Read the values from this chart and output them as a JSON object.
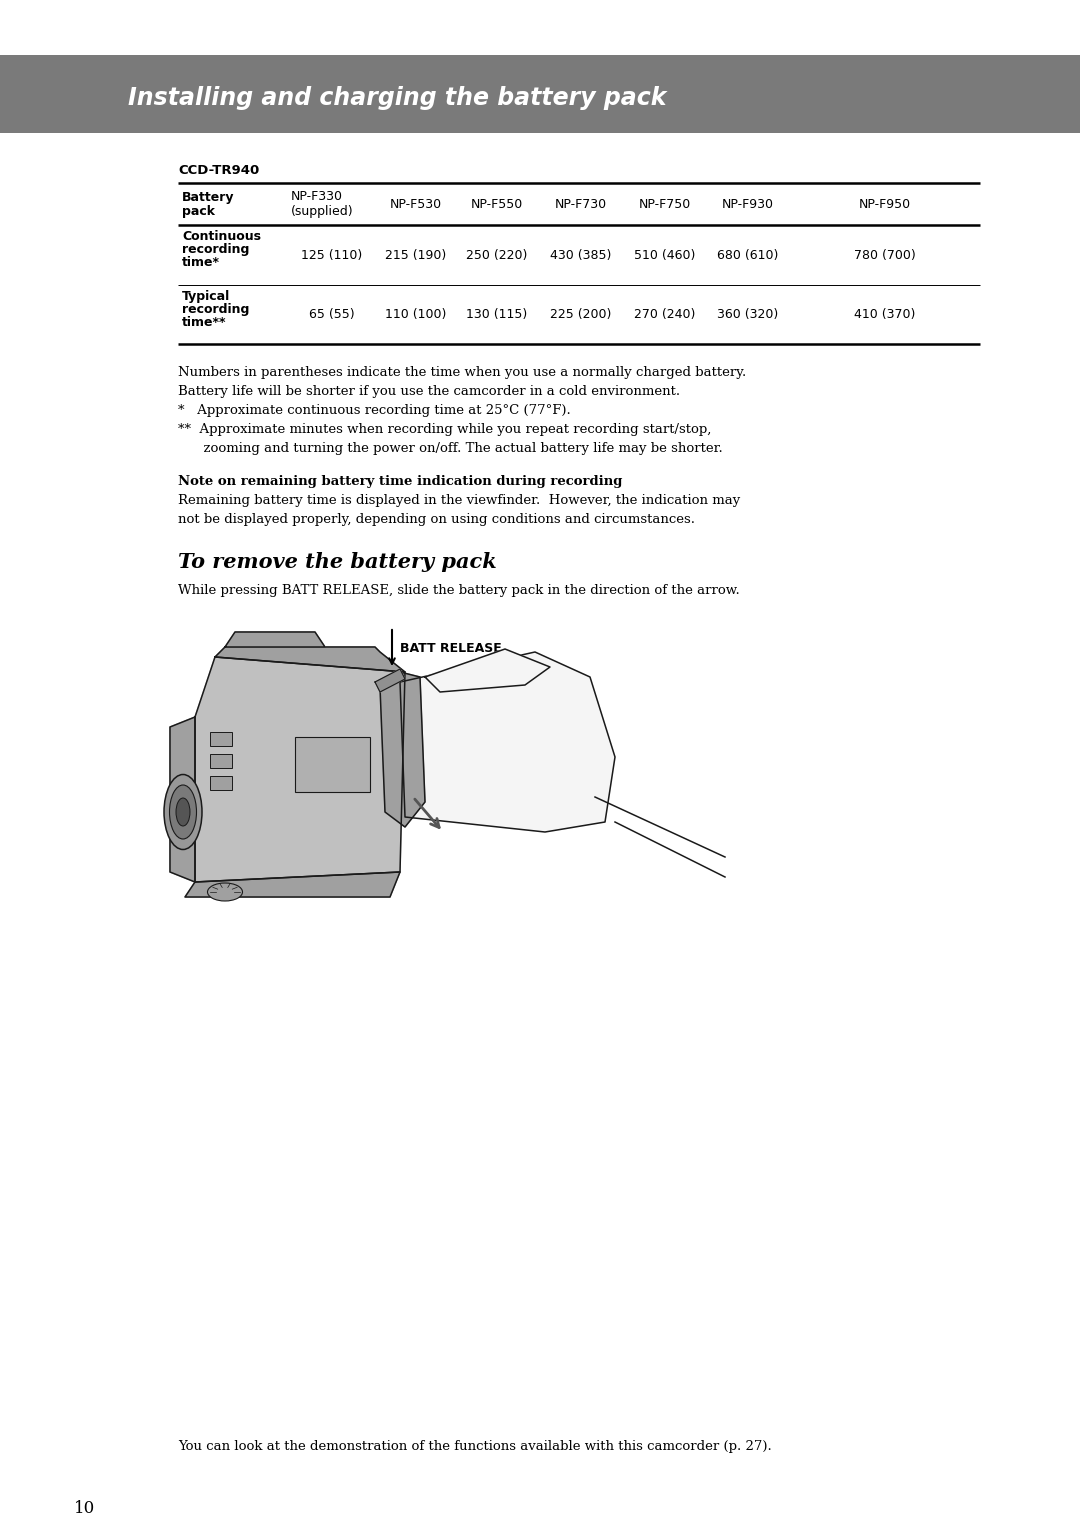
{
  "page_bg": "#ffffff",
  "header_bg": "#7a7a7a",
  "header_text": "Installing and charging the battery pack",
  "header_text_color": "#ffffff",
  "section_label": "CCD-TR940",
  "col1_header_line1": "Battery",
  "col1_header_line2": "pack",
  "col2_header_line1": "NP-F330",
  "col2_header_line2": "(supplied)",
  "other_headers": [
    "NP-F530",
    "NP-F550",
    "NP-F730",
    "NP-F750",
    "NP-F930",
    "NP-F950"
  ],
  "row1_label": [
    "Continuous",
    "recording",
    "time*"
  ],
  "row1_values": [
    "125 (110)",
    "215 (190)",
    "250 (220)",
    "430 (385)",
    "510 (460)",
    "680 (610)",
    "780 (700)"
  ],
  "row2_label": [
    "Typical",
    "recording",
    "time**"
  ],
  "row2_values": [
    "65 (55)",
    "110 (100)",
    "130 (115)",
    "225 (200)",
    "270 (240)",
    "360 (320)",
    "410 (370)"
  ],
  "note_lines": [
    "Numbers in parentheses indicate the time when you use a normally charged battery.",
    "Battery life will be shorter if you use the camcorder in a cold environment.",
    "*   Approximate continuous recording time at 25°C (77°F).",
    "**  Approximate minutes when recording while you repeat recording start/stop,",
    "      zooming and turning the power on/off. The actual battery life may be shorter."
  ],
  "bold_note_title": "Note on remaining battery time indication during recording",
  "bold_note_body": [
    "Remaining battery time is displayed in the viewfinder.  However, the indication may",
    "not be displayed properly, depending on using conditions and circumstances."
  ],
  "section2_title": "To remove the battery pack",
  "section2_body": "While pressing BATT RELEASE, slide the battery pack in the direction of the arrow.",
  "batt_release_label": "BATT RELEASE",
  "footer_note": "You can look at the demonstration of the functions available with this camcorder (p. 27).",
  "page_number": "10"
}
